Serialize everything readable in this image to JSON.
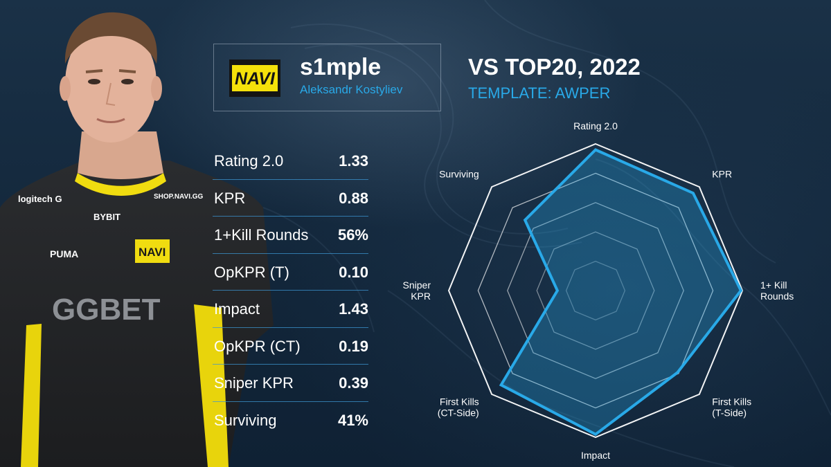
{
  "player": {
    "nick": "s1mple",
    "name": "Aleksandr Kostyliev",
    "team_logo_text": "NAVI",
    "jersey_sponsors": [
      "logitech G",
      "BYBIT",
      "SHOP.NAVI.GG",
      "PUMA",
      "GGBET"
    ]
  },
  "header": {
    "title": "VS TOP20, 2022",
    "subtitle": "TEMPLATE: AWPER"
  },
  "colors": {
    "accent": "#29a9e8",
    "background": "#13273c",
    "navi_yellow": "#f5e10a",
    "radar_fill": "rgba(41,169,232,0.30)"
  },
  "stats": [
    {
      "label": "Rating 2.0",
      "value": "1.33"
    },
    {
      "label": "KPR",
      "value": "0.88"
    },
    {
      "label": "1+Kill Rounds",
      "value": "56%"
    },
    {
      "label": "OpKPR (T)",
      "value": "0.10"
    },
    {
      "label": "Impact",
      "value": "1.43"
    },
    {
      "label": "OpKPR (CT)",
      "value": "0.19"
    },
    {
      "label": "Sniper KPR",
      "value": "0.39"
    },
    {
      "label": "Surviving",
      "value": "41%"
    }
  ],
  "chart_data": {
    "type": "radar",
    "axes": [
      {
        "label": [
          "Rating 2.0"
        ]
      },
      {
        "label": [
          "KPR"
        ]
      },
      {
        "label": [
          "1+ Kill",
          "Rounds"
        ]
      },
      {
        "label": [
          "First Kills",
          "(T-Side)"
        ]
      },
      {
        "label": [
          "Impact"
        ]
      },
      {
        "label": [
          "First Kills",
          "(CT-Side)"
        ]
      },
      {
        "label": [
          "Sniper",
          "KPR"
        ]
      },
      {
        "label": [
          "Surviving"
        ]
      }
    ],
    "values": [
      0.96,
      0.94,
      0.99,
      0.79,
      0.98,
      0.91,
      0.26,
      0.68
    ],
    "range": [
      0,
      1
    ],
    "rings": 5,
    "grid": true
  }
}
